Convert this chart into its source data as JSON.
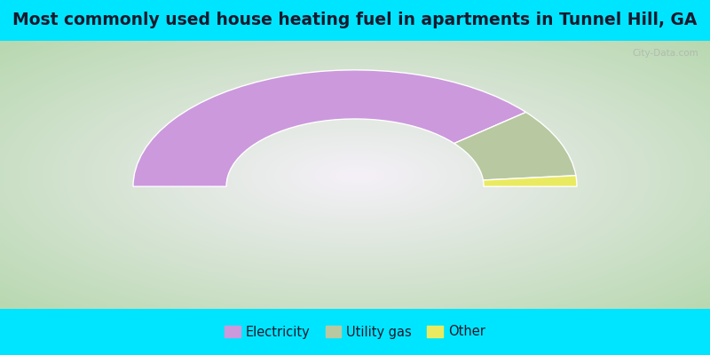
{
  "title": "Most commonly used house heating fuel in apartments in Tunnel Hill, GA",
  "title_fontsize": 13.5,
  "title_color": "#1a1a2e",
  "title_bg": "#00e5ff",
  "legend_bg": "#00e5ff",
  "chart_bg_center": "#f5f0f8",
  "chart_bg_edge": "#b8d8b0",
  "slices": [
    {
      "label": "Electricity",
      "value": 78.0,
      "color": "#cc99dd"
    },
    {
      "label": "Utility gas",
      "value": 19.0,
      "color": "#b8c8a0"
    },
    {
      "label": "Other",
      "value": 3.0,
      "color": "#eaea60"
    }
  ],
  "watermark": "City-Data.com",
  "legend_fontsize": 10.5,
  "startangle": 180,
  "total_for_half": 100
}
